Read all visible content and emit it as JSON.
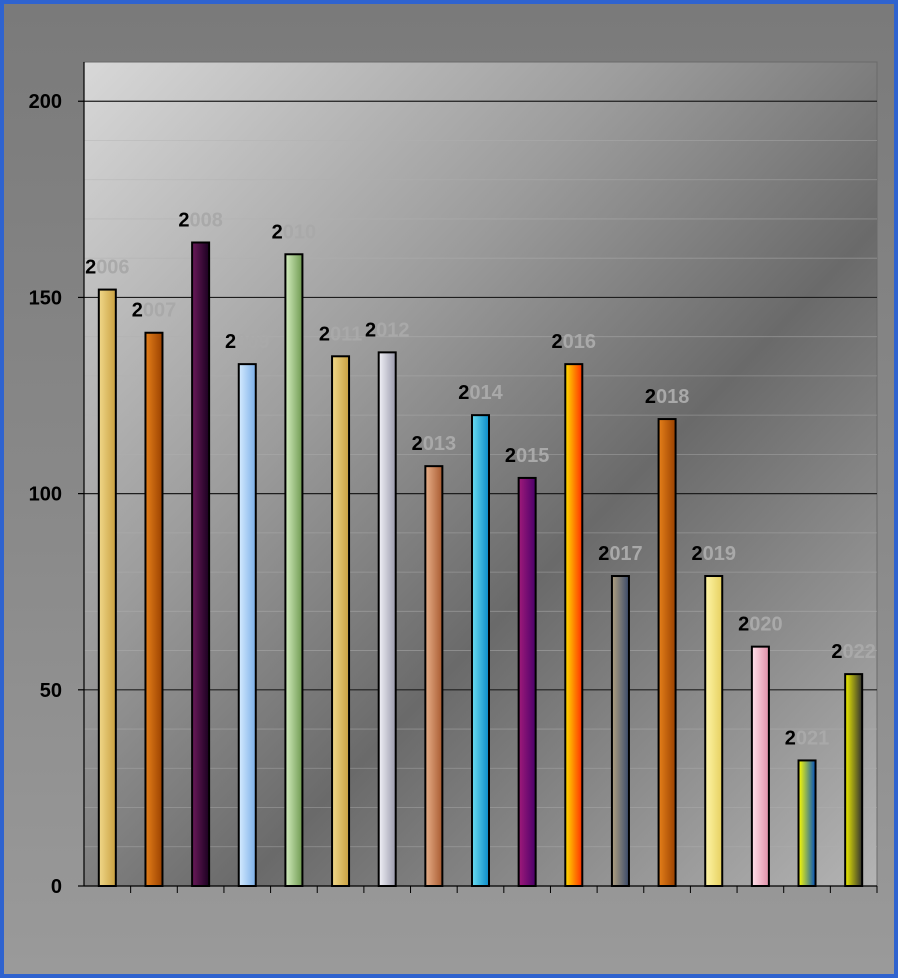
{
  "chart_data": {
    "type": "bar",
    "categories": [
      "2006",
      "2007",
      "2008",
      "2009",
      "2010",
      "2011",
      "2012",
      "2013",
      "2014",
      "2015",
      "2016",
      "2017",
      "2018",
      "2019",
      "2020",
      "2021",
      "2022"
    ],
    "values": [
      152,
      141,
      164,
      133,
      161,
      135,
      136,
      107,
      120,
      104,
      133,
      79,
      119,
      79,
      61,
      32,
      54
    ],
    "data_labels": [
      "2006",
      "2007",
      "2008",
      "2009",
      "2010",
      "2011",
      "2012",
      "2013",
      "2014",
      "2015",
      "2016",
      "2017",
      "2018",
      "2019",
      "2020",
      "2021",
      "2022"
    ],
    "title": "",
    "xlabel": "",
    "ylabel": "",
    "ylim": [
      0,
      210
    ],
    "yticks": [
      "0",
      "50",
      "100",
      "150",
      "200"
    ],
    "grid": true,
    "legend": "none",
    "bar_colors": [
      [
        "#f0d88a",
        "#c9a040"
      ],
      [
        "#e6801a",
        "#9a4100"
      ],
      [
        "#6a1a5a",
        "#1a0020"
      ],
      [
        "#d6ecff",
        "#7aaee8"
      ],
      [
        "#d4eec0",
        "#6f9a50"
      ],
      [
        "#f0d88a",
        "#c9a040"
      ],
      [
        "#f2f2f8",
        "#9a9aac"
      ],
      [
        "#e8b08a",
        "#a85a30"
      ],
      [
        "#6adcf0",
        "#0a8ac8"
      ],
      [
        "#a01a7a",
        "#4a006a"
      ],
      [
        "#ffe000",
        "#ff3000"
      ],
      [
        "#b0a080",
        "#3a4a6a"
      ],
      [
        "#e6801a",
        "#9a4100"
      ],
      [
        "#fff6a8",
        "#e6d060"
      ],
      [
        "#ffe0ea",
        "#e090a8"
      ],
      [
        "#ffff00",
        "#0050c0"
      ],
      [
        "#f0f000",
        "#303030"
      ]
    ]
  }
}
